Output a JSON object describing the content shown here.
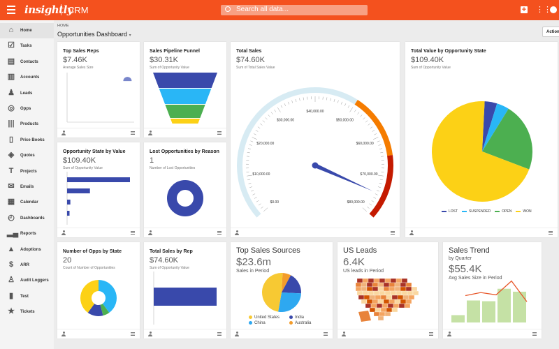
{
  "header": {
    "logo": "insightly",
    "app": "CRM",
    "search_placeholder": "Search all data...",
    "color": "#f4511e"
  },
  "sidebar": {
    "items": [
      {
        "label": "Home",
        "icon": "home-icon",
        "active": true
      },
      {
        "label": "Tasks",
        "icon": "tasks-icon"
      },
      {
        "label": "Contacts",
        "icon": "contacts-icon"
      },
      {
        "label": "Accounts",
        "icon": "accounts-icon"
      },
      {
        "label": "Leads",
        "icon": "leads-icon"
      },
      {
        "label": "Opps",
        "icon": "target-icon"
      },
      {
        "label": "Products",
        "icon": "barcode-icon"
      },
      {
        "label": "Price Books",
        "icon": "book-icon"
      },
      {
        "label": "Quotes",
        "icon": "tag-icon"
      },
      {
        "label": "Projects",
        "icon": "hammer-icon"
      },
      {
        "label": "Emails",
        "icon": "envelope-icon"
      },
      {
        "label": "Calendar",
        "icon": "calendar-icon"
      },
      {
        "label": "Dashboards",
        "icon": "dashboard-icon"
      },
      {
        "label": "Reports",
        "icon": "reports-icon"
      },
      {
        "label": "Adoptions",
        "icon": "warning-icon"
      },
      {
        "label": "ARR",
        "icon": "dollar-icon"
      },
      {
        "label": "Audit Loggers",
        "icon": "user-check-icon"
      },
      {
        "label": "Test",
        "icon": "file-icon"
      },
      {
        "label": "Tickets",
        "icon": "ticket-icon"
      }
    ]
  },
  "page": {
    "breadcrumb": "HOME",
    "title": "Opportunities Dashboard",
    "actions": "Actions"
  },
  "cards": {
    "top_reps": {
      "title": "Top Sales Reps",
      "value": "$7.46K",
      "sub": "Average Sales Size"
    },
    "funnel": {
      "title": "Sales Pipeline Funnel",
      "value": "$30.31K",
      "sub": "Sum of Opportunity Value"
    },
    "total_sales": {
      "title": "Total Sales",
      "value": "$74.60K",
      "sub": "Sum of Total Sales Value"
    },
    "state_value": {
      "title": "Total Value by Opportunity State",
      "value": "$109.40K",
      "sub": "Sum of Opportunity Value"
    },
    "opp_state": {
      "title": "Opportunity State by Value",
      "value": "$109.40K",
      "sub": "Sum of Opportunity Value"
    },
    "lost": {
      "title": "Lost Opportunities by Reason",
      "value": "1",
      "sub": "Number of Lost Opportunities"
    },
    "num_opps": {
      "title": "Number of Opps by State",
      "value": "20",
      "sub": "Count of Number of Opportunities"
    },
    "sales_rep": {
      "title": "Total Sales by Rep",
      "value": "$74.60K",
      "sub": "Sum of Opportunity Value"
    },
    "sources": {
      "title": "Top Sales Sources",
      "value": "$23.6m",
      "sub": "Sales in Period"
    },
    "us_leads": {
      "title": "US Leads",
      "value": "6.4K",
      "sub": "US leads in Period"
    },
    "trend": {
      "title": "Sales Trend",
      "subtitle": "by Quarter",
      "value": "$55.4K",
      "sub": "Avg Sales Size in Period"
    }
  },
  "chart_data": [
    {
      "id": "gauge",
      "type": "gauge",
      "min": 0,
      "max": 80000,
      "value": 74600,
      "ticks": [
        "$0.00",
        "$10,000.00",
        "$20,000.00",
        "$30,000.00",
        "$40,000.00",
        "$50,000.00",
        "$60,000.00",
        "$70,000.00",
        "$80,000.00"
      ],
      "bands": [
        {
          "from": 0,
          "to": 50000,
          "color": "#d7ebf3"
        },
        {
          "from": 50000,
          "to": 65000,
          "color": "#f57c00"
        },
        {
          "from": 65000,
          "to": 80000,
          "color": "#c41a00"
        }
      ],
      "needle_color": "#3949ab"
    },
    {
      "id": "state_pie",
      "type": "pie",
      "legend": "bottom",
      "series": [
        {
          "name": "LOST",
          "value": 4,
          "color": "#3949ab"
        },
        {
          "name": "SUSPENDED",
          "value": 4,
          "color": "#29b6f6"
        },
        {
          "name": "OPEN",
          "value": 22,
          "color": "#4caf50"
        },
        {
          "name": "WON",
          "value": 70,
          "color": "#fcd116"
        }
      ]
    },
    {
      "id": "opp_state_bars",
      "type": "bar",
      "orientation": "horizontal",
      "values": [
        77,
        28,
        4,
        3
      ],
      "color": "#3949ab"
    },
    {
      "id": "funnel",
      "type": "funnel",
      "values": [
        4,
        3,
        2,
        1
      ],
      "colors": [
        "#3949ab",
        "#29b6f6",
        "#4caf50",
        "#fcd116"
      ]
    },
    {
      "id": "top_reps",
      "type": "scatter",
      "points": [
        [
          0.9,
          0.85
        ]
      ],
      "color": "#7986cb"
    },
    {
      "id": "lost_donut",
      "type": "pie",
      "series": [
        {
          "value": 1,
          "color": "#3949ab"
        }
      ]
    },
    {
      "id": "num_opps_donut",
      "type": "pie",
      "series": [
        {
          "value": 40,
          "color": "#29b6f6"
        },
        {
          "value": 6,
          "color": "#4caf50"
        },
        {
          "value": 14,
          "color": "#3949ab"
        },
        {
          "value": 40,
          "color": "#fcd116"
        }
      ]
    },
    {
      "id": "sales_rep_bars",
      "type": "bar",
      "orientation": "horizontal",
      "values": [
        74.6
      ],
      "color": "#3949ab"
    },
    {
      "id": "sources_pie",
      "type": "pie",
      "legend": "bottom",
      "series": [
        {
          "name": "Australia",
          "value": 7,
          "color": "#f39c2b"
        },
        {
          "name": "India",
          "value": 18,
          "color": "#3949ab"
        },
        {
          "name": "China",
          "value": 27,
          "color": "#2ea8f0"
        },
        {
          "name": "United States",
          "value": 48,
          "color": "#f7c933"
        }
      ]
    },
    {
      "id": "trend",
      "type": "bar+line",
      "bars": [
        1,
        3,
        2.9,
        4.6,
        4.2
      ],
      "line": [
        3.5,
        3.9,
        3.6,
        5.4,
        2.7
      ],
      "bar_color": "#c5e1a5",
      "line_color": "#e8572a"
    }
  ]
}
